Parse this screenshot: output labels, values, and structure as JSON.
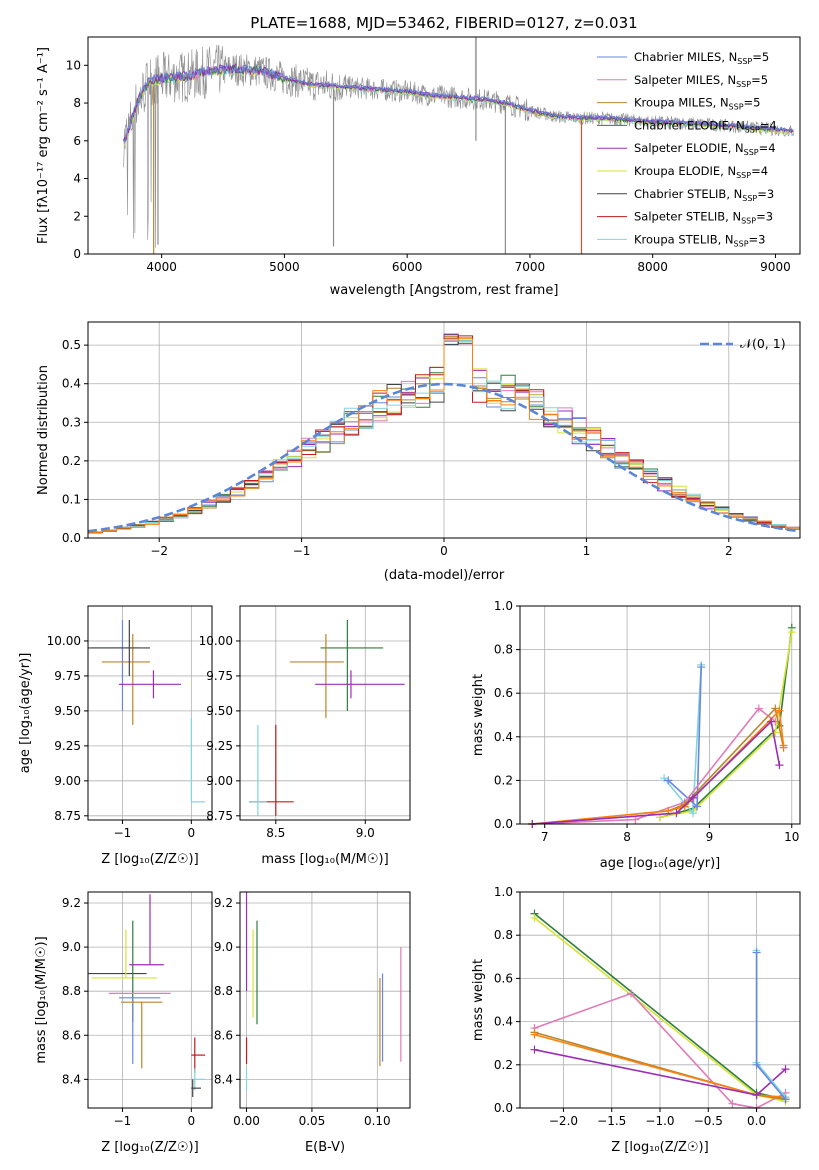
{
  "colors": {
    "s0": "#6a86e0",
    "s1": "#e07cb8",
    "s2": "#b8862a",
    "s3": "#2f7d3e",
    "s4": "#9b2db5",
    "s5": "#d6e436",
    "s6": "#444444",
    "s7": "#c11b1b",
    "s8": "#7fd6dc",
    "orange": "#ff7f0e",
    "gray": "#8c8c8c"
  },
  "chart_data": [
    {
      "type": "line",
      "title": "PLATE=1688, MJD=53462, FIBERID=0127, z=0.031",
      "xlabel": "wavelength [Angstrom, rest frame]",
      "ylabel": "Flux [fλ10⁻¹⁷ erg cm⁻² s⁻¹ A⁻¹]",
      "xlim": [
        3400,
        9200
      ],
      "ylim": [
        0,
        11.5
      ],
      "xticks": [
        4000,
        5000,
        6000,
        7000,
        8000,
        9000
      ],
      "yticks": [
        0,
        2,
        4,
        6,
        8,
        10
      ],
      "legend_position": "top-right",
      "legend": [
        {
          "label": "Chabrier MILES, N",
          "sub": "SSP",
          "suffix": "=5"
        },
        {
          "label": "Salpeter MILES, N",
          "sub": "SSP",
          "suffix": "=5"
        },
        {
          "label": "Kroupa MILES, N",
          "sub": "SSP",
          "suffix": "=5"
        },
        {
          "label": "Chabrier ELODIE, N",
          "sub": "SSP",
          "suffix": "=4"
        },
        {
          "label": "Salpeter ELODIE, N",
          "sub": "SSP",
          "suffix": "=4"
        },
        {
          "label": "Kroupa ELODIE, N",
          "sub": "SSP",
          "suffix": "=4"
        },
        {
          "label": "Chabrier STELIB, N",
          "sub": "SSP",
          "suffix": "=3"
        },
        {
          "label": "Salpeter STELIB, N",
          "sub": "SSP",
          "suffix": "=3"
        },
        {
          "label": "Kroupa STELIB, N",
          "sub": "SSP",
          "suffix": "=3"
        }
      ],
      "data_curve": {
        "x": [
          3700,
          3800,
          3900,
          4000,
          4200,
          4400,
          4600,
          4800,
          5000,
          5200,
          5400,
          5600,
          5800,
          6000,
          6200,
          6400,
          6600,
          6800,
          7000,
          7200,
          7400,
          7600,
          7800,
          8000,
          8200,
          8400,
          8600,
          8800,
          9000,
          9150
        ],
        "y": [
          6.0,
          8.0,
          9.2,
          9.3,
          9.4,
          9.7,
          9.8,
          9.7,
          9.3,
          9.0,
          8.9,
          8.8,
          8.7,
          8.6,
          8.4,
          8.3,
          8.2,
          8.0,
          7.6,
          7.3,
          7.2,
          7.2,
          7.1,
          7.0,
          6.95,
          6.9,
          6.8,
          6.7,
          6.6,
          6.5
        ]
      }
    },
    {
      "type": "histogram",
      "xlabel": "(data-model)/error",
      "ylabel": "Normed distribution",
      "xlim": [
        -2.5,
        2.5
      ],
      "ylim": [
        0,
        0.56
      ],
      "xticks": [
        -2,
        -1,
        0,
        1,
        2
      ],
      "yticks": [
        0.0,
        0.1,
        0.2,
        0.3,
        0.4,
        0.5
      ],
      "legend_position": "top-right",
      "reference_label": "𝒩(0, 1)",
      "bin_width": 0.1,
      "bin_start": -2.5
    },
    {
      "type": "errorbar",
      "xlabel": "Z [log₁₀(Z/Z☉)]",
      "ylabel": "age  [log₁₀(age/yr)]",
      "xlim": [
        -1.5,
        0.3
      ],
      "ylim": [
        8.72,
        10.25
      ],
      "xticks": [
        -1,
        0
      ],
      "yticks": [
        8.75,
        9.0,
        9.25,
        9.5,
        9.75,
        10.0
      ],
      "points": [
        {
          "s": 0,
          "x": -1.0,
          "y": 9.95,
          "xe": [
            0.45,
            0.25
          ],
          "ye": [
            0.45,
            0.2
          ]
        },
        {
          "s": 2,
          "x": -0.85,
          "y": 9.85,
          "xe": [
            0.45,
            0.25
          ],
          "ye": [
            0.45,
            0.2
          ]
        },
        {
          "s": 4,
          "x": -0.55,
          "y": 9.69,
          "xe": [
            0.5,
            0.4
          ],
          "ye": [
            0.1,
            0.1
          ]
        },
        {
          "s": 8,
          "x": 0.0,
          "y": 8.85,
          "xe": [
            0.0,
            0.2
          ],
          "ye": [
            0.0,
            0.6
          ]
        },
        {
          "s": 6,
          "x": -0.9,
          "y": 9.95,
          "xe": [
            0.6,
            0.3
          ],
          "ye": [
            0.2,
            0.2
          ]
        }
      ]
    },
    {
      "type": "errorbar",
      "xlabel": "mass [log₁₀(M/M☉)]",
      "ylabel": "",
      "xlim": [
        8.3,
        9.25
      ],
      "ylim": [
        8.72,
        10.25
      ],
      "xticks": [
        8.5,
        9.0
      ],
      "yticks": [
        8.75,
        9.0,
        9.25,
        9.5,
        9.75,
        10.0
      ],
      "points": [
        {
          "s": 3,
          "x": 8.9,
          "y": 9.95,
          "xe": [
            0.15,
            0.2
          ],
          "ye": [
            0.45,
            0.2
          ]
        },
        {
          "s": 2,
          "x": 8.78,
          "y": 9.85,
          "xe": [
            0.2,
            0.1
          ],
          "ye": [
            0.4,
            0.2
          ]
        },
        {
          "s": 4,
          "x": 8.92,
          "y": 9.69,
          "xe": [
            0.2,
            0.3
          ],
          "ye": [
            0.1,
            0.1
          ]
        },
        {
          "s": 7,
          "x": 8.5,
          "y": 8.85,
          "xe": [
            0.15,
            0.1
          ],
          "ye": [
            0.1,
            0.55
          ]
        },
        {
          "s": 8,
          "x": 8.4,
          "y": 8.85,
          "xe": [
            0.05,
            0.05
          ],
          "ye": [
            0.1,
            0.55
          ]
        }
      ]
    },
    {
      "type": "line",
      "xlabel": "age  [log₁₀(age/yr)]",
      "ylabel": "mass weight",
      "xlim": [
        6.7,
        10.1
      ],
      "ylim": [
        0,
        1.0
      ],
      "xticks": [
        7,
        8,
        9,
        10
      ],
      "yticks": [
        0.0,
        0.2,
        0.4,
        0.6,
        0.8,
        1.0
      ],
      "series": [
        {
          "s": 3,
          "x": [
            8.4,
            8.8,
            9.85,
            10.0
          ],
          "y": [
            0.03,
            0.07,
            0.45,
            0.9
          ]
        },
        {
          "s": 5,
          "x": 8.4,
          "x_list": [
            8.4,
            8.8,
            9.8,
            10.0
          ],
          "y": [
            0.03,
            0.06,
            0.42,
            0.88
          ]
        },
        {
          "s": 8,
          "x": [
            8.45,
            8.8,
            8.9
          ],
          "y": [
            0.21,
            0.05,
            0.73
          ]
        },
        {
          "s": 0,
          "x": [
            8.5,
            8.85,
            8.9
          ],
          "y": [
            0.2,
            0.08,
            0.72
          ]
        },
        {
          "s": 1,
          "x": [
            6.85,
            8.1,
            8.7,
            9.6,
            9.8
          ],
          "y": [
            0.0,
            0.02,
            0.1,
            0.53,
            0.47
          ]
        },
        {
          "s": 2,
          "x": [
            6.85,
            8.5,
            8.7,
            9.8,
            9.9
          ],
          "y": [
            0.0,
            0.06,
            0.09,
            0.53,
            0.35
          ]
        },
        {
          "s": "orange",
          "x": [
            6.85,
            8.5,
            8.7,
            9.85,
            9.9
          ],
          "y": [
            0.0,
            0.06,
            0.08,
            0.52,
            0.36
          ]
        },
        {
          "s": 4,
          "x": [
            6.85,
            8.6,
            8.8,
            9.75,
            9.85
          ],
          "y": [
            0.0,
            0.05,
            0.12,
            0.47,
            0.27
          ]
        }
      ]
    },
    {
      "type": "errorbar",
      "xlabel": "Z [log₁₀(Z/Z☉)]",
      "ylabel": "mass [log₁₀(M/M☉)]",
      "xlim": [
        -1.5,
        0.3
      ],
      "ylim": [
        8.27,
        9.25
      ],
      "xticks": [
        -1,
        0
      ],
      "yticks": [
        8.4,
        8.6,
        8.8,
        9.0,
        9.2
      ],
      "points": [
        {
          "s": 6,
          "x": -1.05,
          "y": 8.88,
          "xe": [
            0.45,
            0.4
          ],
          "ye": [
            0.0,
            0.0
          ]
        },
        {
          "s": 5,
          "x": -0.95,
          "y": 8.86,
          "xe": [
            0.5,
            0.45
          ],
          "ye": [
            0.0,
            0.22
          ]
        },
        {
          "s": 3,
          "x": -0.85,
          "y": 8.88,
          "xe": [
            0.0,
            0.0
          ],
          "ye": [
            0.22,
            0.24
          ]
        },
        {
          "s": 4,
          "x": -0.6,
          "y": 8.92,
          "xe": [
            0.3,
            0.2
          ],
          "ye": [
            0.0,
            0.32
          ]
        },
        {
          "s": 1,
          "x": -0.9,
          "y": 8.79,
          "xe": [
            0.3,
            0.6
          ],
          "ye": [
            0.0,
            0.0
          ]
        },
        {
          "s": 0,
          "x": -0.85,
          "y": 8.77,
          "xe": [
            0.2,
            0.4
          ],
          "ye": [
            0.3,
            0.0
          ]
        },
        {
          "s": 2,
          "x": -0.72,
          "y": 8.75,
          "xe": [
            0.3,
            0.3
          ],
          "ye": [
            0.3,
            0.0
          ]
        },
        {
          "s": 7,
          "x": 0.05,
          "y": 8.51,
          "xe": [
            0.05,
            0.15
          ],
          "ye": [
            0.08,
            0.08
          ]
        },
        {
          "s": 8,
          "x": 0.05,
          "y": 8.4,
          "xe": [
            0.05,
            0.15
          ],
          "ye": [
            0.05,
            0.05
          ]
        },
        {
          "s": 6,
          "x": 0.02,
          "y": 8.36,
          "xe": [
            0.02,
            0.12
          ],
          "ye": [
            0.04,
            0.04
          ]
        }
      ]
    },
    {
      "type": "errorbar",
      "xlabel": "E(B-V)",
      "ylabel": "",
      "xlim": [
        -0.005,
        0.125
      ],
      "ylim": [
        8.27,
        9.25
      ],
      "xticks": [
        0.0,
        0.05,
        0.1
      ],
      "yticks": [
        8.4,
        8.6,
        8.8,
        9.0,
        9.2
      ],
      "points": [
        {
          "s": 4,
          "x": 0.0,
          "y": 9.05,
          "xe": [
            0,
            0
          ],
          "ye": [
            0.25,
            0.2
          ]
        },
        {
          "s": 3,
          "x": 0.008,
          "y": 8.95,
          "xe": [
            0,
            0
          ],
          "ye": [
            0.3,
            0.17
          ]
        },
        {
          "s": 5,
          "x": 0.005,
          "y": 8.88,
          "xe": [
            0,
            0
          ],
          "ye": [
            0.2,
            0.2
          ]
        },
        {
          "s": 7,
          "x": 0.0,
          "y": 8.53,
          "xe": [
            0,
            0
          ],
          "ye": [
            0.06,
            0.06
          ]
        },
        {
          "s": 8,
          "x": 0.0,
          "y": 8.4,
          "xe": [
            0,
            0
          ],
          "ye": [
            0.05,
            0.05
          ]
        },
        {
          "s": 2,
          "x": 0.102,
          "y": 8.66,
          "xe": [
            0,
            0
          ],
          "ye": [
            0.2,
            0.2
          ]
        },
        {
          "s": 0,
          "x": 0.104,
          "y": 8.68,
          "xe": [
            0,
            0
          ],
          "ye": [
            0.2,
            0.2
          ]
        },
        {
          "s": 1,
          "x": 0.118,
          "y": 8.75,
          "xe": [
            0,
            0
          ],
          "ye": [
            0.27,
            0.25
          ]
        }
      ]
    },
    {
      "type": "line",
      "xlabel": "Z [log₁₀(Z/Z☉)]",
      "ylabel": "mass weight",
      "xlim": [
        -2.45,
        0.45
      ],
      "ylim": [
        0,
        1.0
      ],
      "xticks": [
        -2.0,
        -1.5,
        -1.0,
        -0.5,
        0.0
      ],
      "yticks": [
        0.0,
        0.2,
        0.4,
        0.6,
        0.8,
        1.0
      ],
      "series": [
        {
          "s": 3,
          "x": [
            -2.3,
            0.0,
            0.3
          ],
          "y": [
            0.9,
            0.07,
            0.04
          ]
        },
        {
          "s": 5,
          "x": [
            -2.3,
            0.0,
            0.3
          ],
          "y": [
            0.88,
            0.06,
            0.03
          ]
        },
        {
          "s": 1,
          "x": [
            -2.3,
            -1.3,
            -0.25,
            0.0,
            0.3
          ],
          "y": [
            0.37,
            0.53,
            0.02,
            0.0,
            0.07
          ]
        },
        {
          "s": 2,
          "x": [
            -2.3,
            0.0,
            0.3
          ],
          "y": [
            0.35,
            0.06,
            0.04
          ]
        },
        {
          "s": "orange",
          "x": [
            -2.3,
            0.0,
            0.3
          ],
          "y": [
            0.34,
            0.06,
            0.05
          ]
        },
        {
          "s": 4,
          "x": [
            -2.3,
            0.0,
            0.3
          ],
          "y": [
            0.27,
            0.06,
            0.18
          ]
        },
        {
          "s": 8,
          "x": [
            0.0,
            0.0,
            0.3
          ],
          "y": [
            0.73,
            0.21,
            0.05
          ]
        },
        {
          "s": 0,
          "x": [
            0.0,
            0.0,
            0.3
          ],
          "y": [
            0.72,
            0.2,
            0.04
          ]
        }
      ]
    }
  ]
}
